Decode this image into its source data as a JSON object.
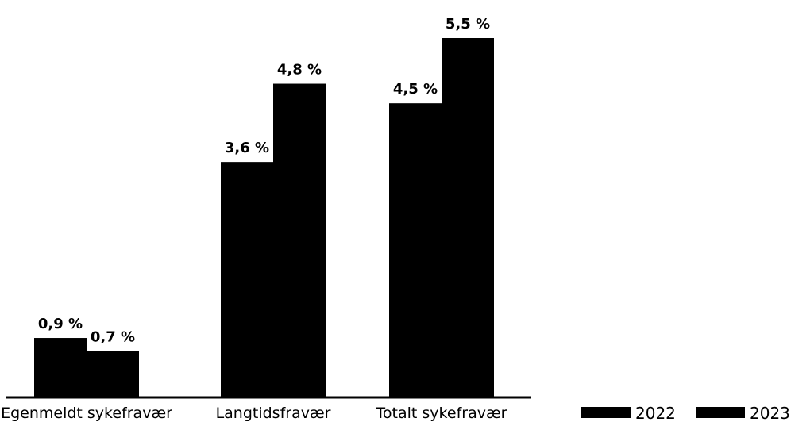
{
  "chart_data": {
    "type": "bar",
    "categories": [
      "Egenmeldt sykefravær",
      "Langtidsfravær",
      "Totalt sykefravær"
    ],
    "series": [
      {
        "name": "2022",
        "values": [
          0.9,
          3.6,
          4.5
        ],
        "labels": [
          "0,9 %",
          "3,6 %",
          "4,5 %"
        ],
        "color": "#000000"
      },
      {
        "name": "2023",
        "values": [
          0.7,
          4.8,
          5.5
        ],
        "labels": [
          "0,7 %",
          "4,8 %",
          "5,5 %"
        ],
        "color": "#000000"
      }
    ],
    "ylim": [
      0,
      5.5
    ],
    "grid": false,
    "legend_position": "bottom-right"
  }
}
